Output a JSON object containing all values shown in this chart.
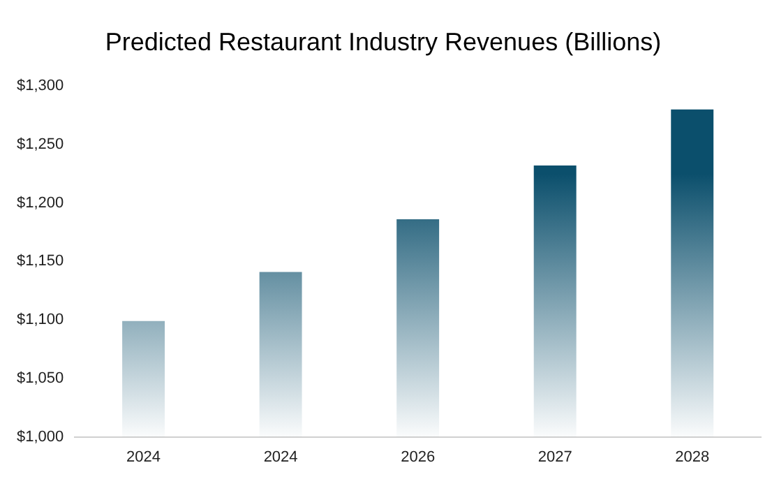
{
  "chart_data": {
    "type": "bar",
    "title": "Predicted Restaurant Industry Revenues (Billions)",
    "categories": [
      "2024",
      "2024",
      "2026",
      "2027",
      "2028"
    ],
    "values": [
      1099,
      1141,
      1186,
      1232,
      1280
    ],
    "color": "#0b4f6c",
    "ylim": [
      1000,
      1300
    ],
    "yticks": [
      {
        "value": 1000,
        "label": "$1,000"
      },
      {
        "value": 1050,
        "label": "$1,050"
      },
      {
        "value": 1100,
        "label": "$1,100"
      },
      {
        "value": 1150,
        "label": "$1,150"
      },
      {
        "value": 1200,
        "label": "$1,200"
      },
      {
        "value": 1250,
        "label": "$1,250"
      },
      {
        "value": 1300,
        "label": "$1,300"
      }
    ],
    "grid": false,
    "legend": false
  }
}
